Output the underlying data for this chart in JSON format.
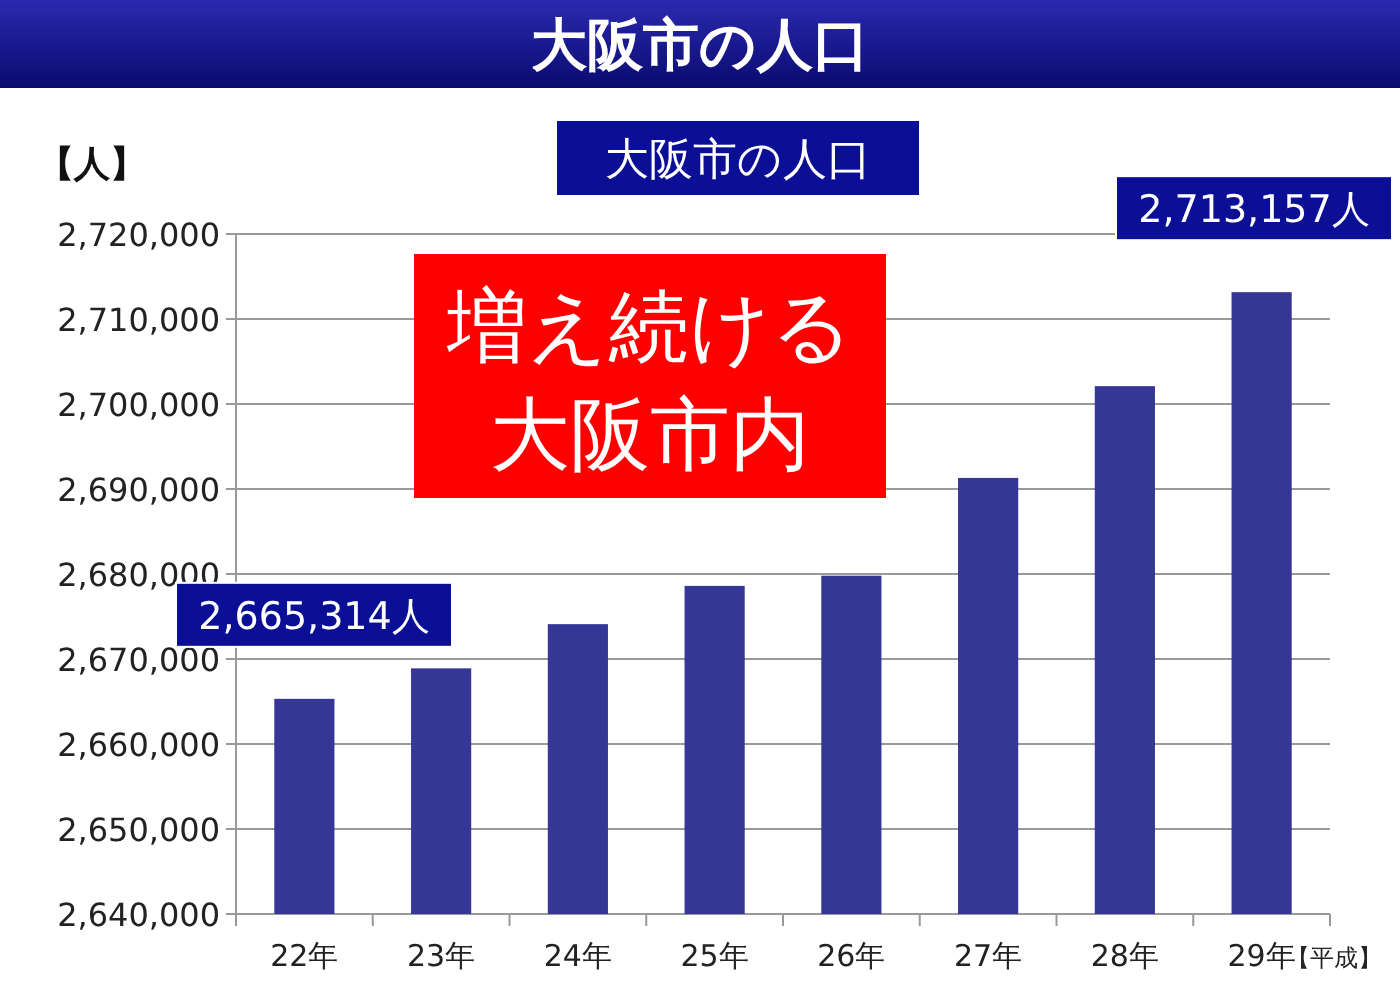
{
  "chart_data": {
    "type": "bar",
    "title": "大阪市の人口",
    "subtitle": "大阪市の人口",
    "ylabel": "【人】",
    "xlabel": "【平成】",
    "categories": [
      "22年",
      "23年",
      "24年",
      "25年",
      "26年",
      "27年",
      "28年",
      "29年"
    ],
    "values": [
      2665314,
      2668900,
      2674100,
      2678600,
      2679800,
      2691300,
      2702100,
      2713157
    ],
    "value_labels": [
      "2,665,314人",
      null,
      null,
      null,
      null,
      null,
      null,
      "2,713,157人"
    ],
    "color": "#363696",
    "ylim": [
      2640000,
      2720000
    ],
    "yticks": [
      {
        "value": 2640000,
        "label": "2,640,000"
      },
      {
        "value": 2650000,
        "label": "2,650,000"
      },
      {
        "value": 2660000,
        "label": "2,660,000"
      },
      {
        "value": 2670000,
        "label": "2,670,000"
      },
      {
        "value": 2680000,
        "label": "2,680,000"
      },
      {
        "value": 2690000,
        "label": "2,690,000"
      },
      {
        "value": 2700000,
        "label": "2,700,000"
      },
      {
        "value": 2710000,
        "label": "2,710,000"
      },
      {
        "value": 2720000,
        "label": "2,720,000"
      }
    ],
    "grid": "y",
    "annotations": [
      "増え続ける",
      "大阪市内"
    ]
  }
}
